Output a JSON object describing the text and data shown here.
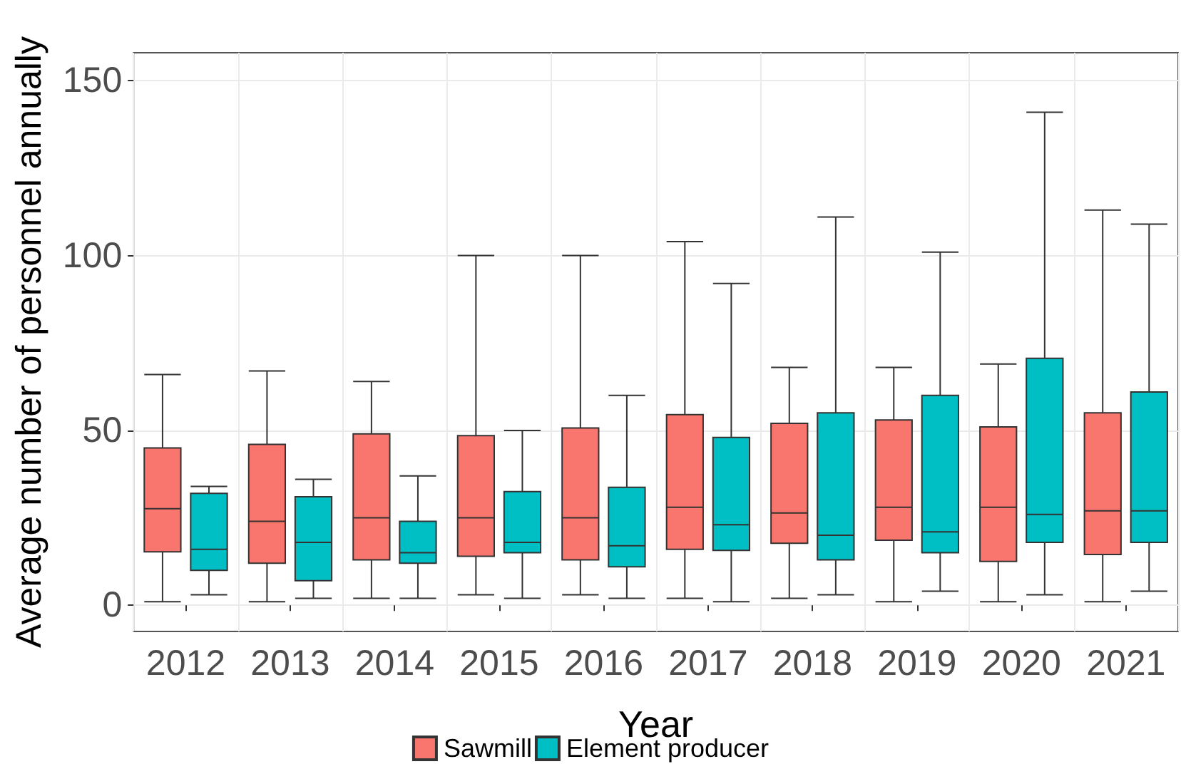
{
  "chart_data": {
    "type": "box",
    "xlabel": "Year",
    "ylabel": "Average number of personnel annually",
    "categories": [
      "2012",
      "2013",
      "2014",
      "2015",
      "2016",
      "2017",
      "2018",
      "2019",
      "2020",
      "2021"
    ],
    "series": [
      {
        "name": "Sawmill",
        "color": "#f8766d",
        "boxes": [
          {
            "low": 1,
            "q1": 15.3,
            "median": 27.6,
            "q3": 45,
            "high": 66
          },
          {
            "low": 1,
            "q1": 12,
            "median": 24,
            "q3": 46,
            "high": 67
          },
          {
            "low": 2,
            "q1": 13,
            "median": 25,
            "q3": 49,
            "high": 64
          },
          {
            "low": 3,
            "q1": 14,
            "median": 25,
            "q3": 48.5,
            "high": 100
          },
          {
            "low": 3,
            "q1": 13,
            "median": 25,
            "q3": 50.7,
            "high": 100
          },
          {
            "low": 2,
            "q1": 16,
            "median": 28,
            "q3": 54.5,
            "high": 104
          },
          {
            "low": 2,
            "q1": 17.7,
            "median": 26.4,
            "q3": 52,
            "high": 68
          },
          {
            "low": 1,
            "q1": 18.6,
            "median": 28,
            "q3": 53,
            "high": 68
          },
          {
            "low": 1,
            "q1": 12.5,
            "median": 28,
            "q3": 51,
            "high": 69
          },
          {
            "low": 1,
            "q1": 14.5,
            "median": 27,
            "q3": 55,
            "high": 113
          }
        ]
      },
      {
        "name": "Element producer",
        "color": "#00bfc4",
        "boxes": [
          {
            "low": 3,
            "q1": 10,
            "median": 16,
            "q3": 32,
            "high": 34
          },
          {
            "low": 2,
            "q1": 7,
            "median": 18,
            "q3": 31,
            "high": 36
          },
          {
            "low": 2,
            "q1": 12,
            "median": 15,
            "q3": 24,
            "high": 37
          },
          {
            "low": 2,
            "q1": 15,
            "median": 18,
            "q3": 32.5,
            "high": 50
          },
          {
            "low": 2,
            "q1": 11,
            "median": 17,
            "q3": 33.7,
            "high": 60
          },
          {
            "low": 1,
            "q1": 15.7,
            "median": 23,
            "q3": 48,
            "high": 92
          },
          {
            "low": 3,
            "q1": 13,
            "median": 20,
            "q3": 55,
            "high": 111
          },
          {
            "low": 4,
            "q1": 15,
            "median": 21,
            "q3": 60,
            "high": 101
          },
          {
            "low": 3,
            "q1": 18,
            "median": 26,
            "q3": 70.6,
            "high": 141
          },
          {
            "low": 4,
            "q1": 18,
            "median": 27,
            "q3": 61,
            "high": 109
          }
        ]
      }
    ],
    "ylim": [
      -7.5,
      158
    ],
    "yticks": [
      0,
      50,
      100,
      150
    ],
    "grid": true,
    "legend": "bottom"
  }
}
